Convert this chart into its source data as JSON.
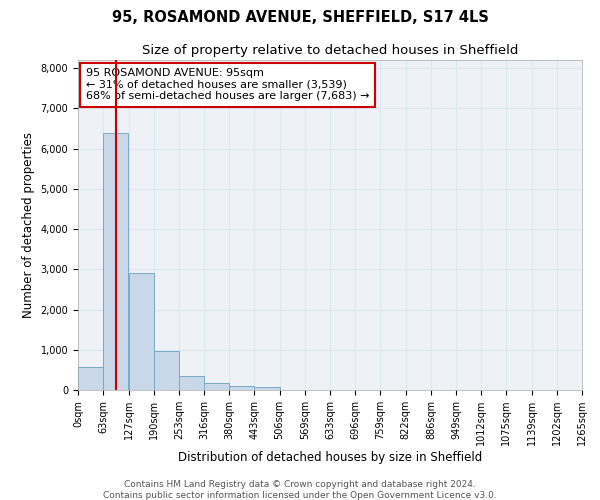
{
  "title1": "95, ROSAMOND AVENUE, SHEFFIELD, S17 4LS",
  "title2": "Size of property relative to detached houses in Sheffield",
  "xlabel": "Distribution of detached houses by size in Sheffield",
  "ylabel": "Number of detached properties",
  "annotation_line1": "95 ROSAMOND AVENUE: 95sqm",
  "annotation_line2": "← 31% of detached houses are smaller (3,539)",
  "annotation_line3": "68% of semi-detached houses are larger (7,683) →",
  "footer1": "Contains HM Land Registry data © Crown copyright and database right 2024.",
  "footer2": "Contains public sector information licensed under the Open Government Licence v3.0.",
  "property_size_sqm": 95,
  "bar_left_edges": [
    0,
    63,
    127,
    190,
    253,
    316,
    380,
    443,
    506,
    569,
    633,
    696,
    759,
    822,
    886,
    949,
    1012,
    1075,
    1139,
    1202
  ],
  "bar_heights": [
    580,
    6380,
    2900,
    970,
    360,
    165,
    110,
    70,
    0,
    0,
    0,
    0,
    0,
    0,
    0,
    0,
    0,
    0,
    0,
    0
  ],
  "bin_width": 63,
  "bar_color": "#c8d8e8",
  "bar_edge_color": "#7aaac8",
  "grid_color": "#dce8f0",
  "vline_color": "#cc0000",
  "annotation_box_edge": "#cc0000",
  "annotation_box_face": "#ffffff",
  "ylim": [
    0,
    8200
  ],
  "yticks": [
    0,
    1000,
    2000,
    3000,
    4000,
    5000,
    6000,
    7000,
    8000
  ],
  "bg_color": "#eef2f7",
  "title1_fontsize": 10.5,
  "title2_fontsize": 9.5,
  "annotation_fontsize": 8,
  "xlabel_fontsize": 8.5,
  "ylabel_fontsize": 8.5,
  "tick_fontsize": 7,
  "footer_fontsize": 6.5
}
